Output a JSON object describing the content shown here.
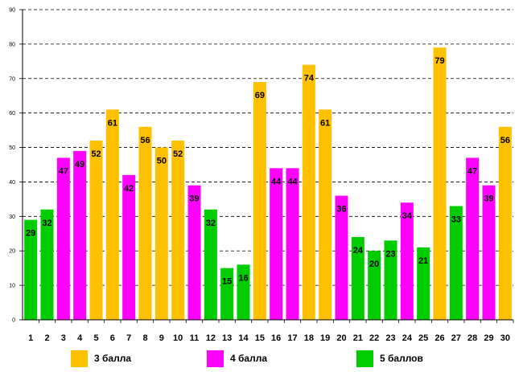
{
  "chart_data": {
    "type": "bar",
    "title": "",
    "xlabel": "",
    "ylabel": "",
    "ylim": [
      0,
      90
    ],
    "yticks": [
      0,
      10,
      20,
      30,
      40,
      50,
      60,
      70,
      80,
      90
    ],
    "grid": true,
    "categories": [
      "1",
      "2",
      "3",
      "4",
      "5",
      "6",
      "7",
      "8",
      "9",
      "10",
      "11",
      "12",
      "13",
      "14",
      "15",
      "16",
      "17",
      "18",
      "19",
      "20",
      "21",
      "22",
      "23",
      "24",
      "25",
      "26",
      "27",
      "28",
      "29",
      "30"
    ],
    "values": [
      29,
      32,
      47,
      49,
      52,
      61,
      42,
      56,
      50,
      52,
      39,
      32,
      15,
      16,
      69,
      44,
      44,
      74,
      61,
      36,
      24,
      20,
      23,
      34,
      21,
      79,
      33,
      47,
      39,
      56
    ],
    "groups": [
      "5",
      "5",
      "4",
      "4",
      "3",
      "3",
      "4",
      "3",
      "3",
      "3",
      "4",
      "5",
      "5",
      "5",
      "3",
      "4",
      "4",
      "3",
      "3",
      "4",
      "5",
      "5",
      "5",
      "4",
      "5",
      "3",
      "5",
      "4",
      "4",
      "3"
    ],
    "legend": [
      {
        "key": "3",
        "label": "3 балла",
        "color": "#FFC000"
      },
      {
        "key": "4",
        "label": "4 балла",
        "color": "#FF00FF"
      },
      {
        "key": "5",
        "label": "5 баллов",
        "color": "#00CC00"
      }
    ],
    "legend_position": "bottom"
  }
}
